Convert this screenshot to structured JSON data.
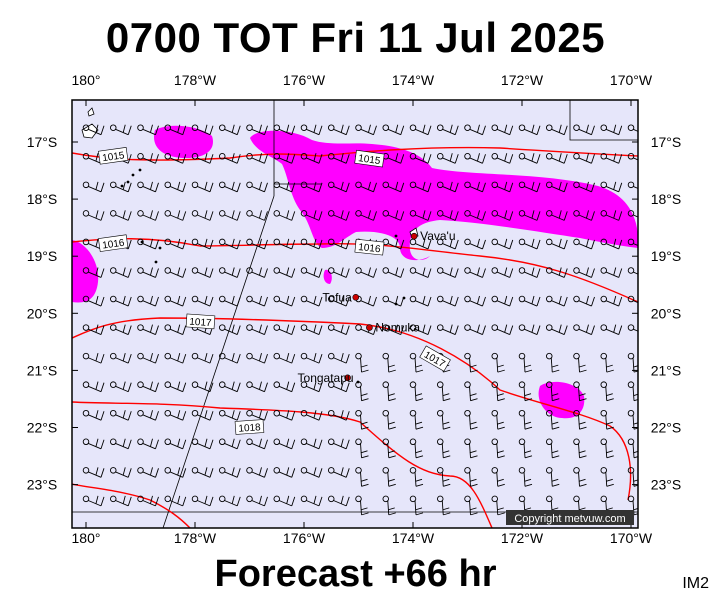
{
  "header": {
    "title": "0700 TOT Fri 11 Jul 2025"
  },
  "footer": {
    "forecast_label": "Forecast +66 hr",
    "image_code": "IM2"
  },
  "axes": {
    "lon_labels": [
      "180°",
      "178°W",
      "176°W",
      "174°W",
      "172°W",
      "170°W"
    ],
    "lat_labels": [
      "17°S",
      "18°S",
      "19°S",
      "20°S",
      "21°S",
      "22°S",
      "23°S"
    ]
  },
  "places": [
    {
      "name": "Vava'u",
      "lon": -173.98,
      "lat": -18.65
    },
    {
      "name": "Tofua",
      "lon": -175.05,
      "lat": -19.72
    },
    {
      "name": "Nomuka",
      "lon": -174.8,
      "lat": -20.25
    },
    {
      "name": "Tongatapu",
      "lon": -175.2,
      "lat": -21.13
    }
  ],
  "isobars": [
    {
      "label": "1015",
      "label_lon": -179.5,
      "label_lat": -17.25
    },
    {
      "label": "1015",
      "label_lon": -174.8,
      "label_lat": -17.3
    },
    {
      "label": "1016",
      "label_lon": -179.5,
      "label_lat": -18.78
    },
    {
      "label": "1016",
      "label_lon": -174.8,
      "label_lat": -18.85
    },
    {
      "label": "1017",
      "label_lon": -177.9,
      "label_lat": -20.15
    },
    {
      "label": "1017",
      "label_lon": -173.6,
      "label_lat": -20.8
    },
    {
      "label": "1018",
      "label_lon": -177.0,
      "label_lat": -22.0
    }
  ],
  "copyright": "Copyright metvuw.com",
  "colors": {
    "ocean": "#e6e6fa",
    "isobar": "#ff0000",
    "rain": "#ff00ff",
    "land": "#ffffff",
    "place_dot": "#cc0000"
  }
}
